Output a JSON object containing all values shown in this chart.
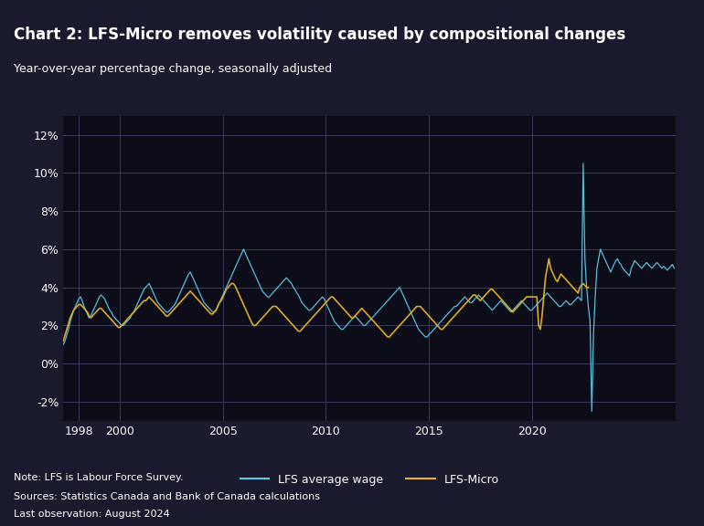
{
  "title": "Chart 2: LFS-Micro removes volatility caused by compositional changes",
  "subtitle": "Year-over-year percentage change, seasonally adjusted",
  "note_lines": [
    "Note: LFS is Labour Force Survey.",
    "Sources: Statistics Canada and Bank of Canada calculations",
    "Last observation: August 2024"
  ],
  "legend_labels": [
    "LFS average wage",
    "LFS-Micro"
  ],
  "lfs_color": "#5bc8e8",
  "micro_color": "#e8b422",
  "bg_color": "#1a1a2e",
  "plot_bg_color": "#0d0d1a",
  "text_color": "#ffffff",
  "grid_color": "#3a3a5a",
  "ylim": [
    -3,
    13
  ],
  "yticks": [
    -2,
    0,
    2,
    4,
    6,
    8,
    10,
    12
  ],
  "ytick_labels": [
    "-2%",
    "0%",
    "2%",
    "4%",
    "6%",
    "8%",
    "10%",
    "12%"
  ],
  "start_year": 1997.25,
  "lfs_avg": [
    1.0,
    1.2,
    1.5,
    1.8,
    2.2,
    2.5,
    2.8,
    3.0,
    3.2,
    3.4,
    3.5,
    3.3,
    3.0,
    2.8,
    2.6,
    2.4,
    2.5,
    2.7,
    2.9,
    3.1,
    3.3,
    3.5,
    3.6,
    3.5,
    3.4,
    3.2,
    3.0,
    2.8,
    2.7,
    2.5,
    2.4,
    2.3,
    2.2,
    2.1,
    2.0,
    2.0,
    2.1,
    2.2,
    2.3,
    2.4,
    2.6,
    2.7,
    2.9,
    3.1,
    3.3,
    3.5,
    3.7,
    3.9,
    4.0,
    4.1,
    4.2,
    4.0,
    3.8,
    3.6,
    3.4,
    3.2,
    3.1,
    3.0,
    2.9,
    2.8,
    2.7,
    2.7,
    2.8,
    2.9,
    3.0,
    3.1,
    3.3,
    3.5,
    3.7,
    3.9,
    4.1,
    4.3,
    4.5,
    4.7,
    4.8,
    4.6,
    4.4,
    4.2,
    4.0,
    3.8,
    3.6,
    3.4,
    3.2,
    3.1,
    3.0,
    2.9,
    2.8,
    2.7,
    2.7,
    2.8,
    3.0,
    3.2,
    3.4,
    3.6,
    3.8,
    4.0,
    4.2,
    4.4,
    4.6,
    4.8,
    5.0,
    5.2,
    5.4,
    5.6,
    5.8,
    6.0,
    5.8,
    5.6,
    5.4,
    5.2,
    5.0,
    4.8,
    4.6,
    4.4,
    4.2,
    4.0,
    3.8,
    3.7,
    3.6,
    3.5,
    3.5,
    3.6,
    3.7,
    3.8,
    3.9,
    4.0,
    4.1,
    4.2,
    4.3,
    4.4,
    4.5,
    4.4,
    4.3,
    4.2,
    4.0,
    3.9,
    3.7,
    3.6,
    3.4,
    3.2,
    3.1,
    3.0,
    2.9,
    2.8,
    2.8,
    2.9,
    3.0,
    3.1,
    3.2,
    3.3,
    3.4,
    3.5,
    3.4,
    3.2,
    3.0,
    2.8,
    2.6,
    2.4,
    2.2,
    2.1,
    2.0,
    1.9,
    1.8,
    1.8,
    1.9,
    2.0,
    2.1,
    2.2,
    2.3,
    2.4,
    2.5,
    2.4,
    2.3,
    2.2,
    2.1,
    2.0,
    2.0,
    2.1,
    2.2,
    2.3,
    2.4,
    2.5,
    2.6,
    2.7,
    2.8,
    2.9,
    3.0,
    3.1,
    3.2,
    3.3,
    3.4,
    3.5,
    3.6,
    3.7,
    3.8,
    3.9,
    4.0,
    3.8,
    3.6,
    3.4,
    3.2,
    3.0,
    2.8,
    2.6,
    2.4,
    2.2,
    2.0,
    1.8,
    1.7,
    1.6,
    1.5,
    1.4,
    1.4,
    1.5,
    1.6,
    1.7,
    1.8,
    1.9,
    2.0,
    2.1,
    2.2,
    2.3,
    2.4,
    2.5,
    2.6,
    2.7,
    2.8,
    2.9,
    3.0,
    3.0,
    3.1,
    3.2,
    3.3,
    3.4,
    3.5,
    3.4,
    3.3,
    3.2,
    3.2,
    3.3,
    3.4,
    3.5,
    3.6,
    3.5,
    3.4,
    3.3,
    3.2,
    3.1,
    3.0,
    2.9,
    2.8,
    2.9,
    3.0,
    3.1,
    3.2,
    3.3,
    3.2,
    3.1,
    3.0,
    2.9,
    2.8,
    2.7,
    2.8,
    2.9,
    3.0,
    3.1,
    3.2,
    3.3,
    3.2,
    3.1,
    3.0,
    2.9,
    2.8,
    2.8,
    2.9,
    3.0,
    3.1,
    3.2,
    3.3,
    3.4,
    3.5,
    3.6,
    3.7,
    3.6,
    3.5,
    3.4,
    3.3,
    3.2,
    3.1,
    3.0,
    3.0,
    3.1,
    3.2,
    3.3,
    3.2,
    3.1,
    3.1,
    3.2,
    3.3,
    3.4,
    3.5,
    3.4,
    3.3,
    10.5,
    5.5,
    4.0,
    3.0,
    2.2,
    -2.5,
    1.5,
    3.5,
    5.0,
    5.5,
    6.0,
    5.8,
    5.6,
    5.4,
    5.2,
    5.0,
    4.8,
    5.0,
    5.2,
    5.4,
    5.5,
    5.3,
    5.2,
    5.0,
    4.9,
    4.8,
    4.7,
    4.6,
    5.0,
    5.2,
    5.4,
    5.3,
    5.2,
    5.1,
    5.0,
    5.1,
    5.2,
    5.3,
    5.2,
    5.1,
    5.0,
    5.1,
    5.2,
    5.3,
    5.2,
    5.1,
    5.0,
    5.1,
    5.0,
    4.9,
    5.0,
    5.1,
    5.2,
    5.0
  ],
  "micro": [
    1.2,
    1.5,
    1.8,
    2.1,
    2.4,
    2.6,
    2.8,
    2.9,
    3.0,
    3.1,
    3.1,
    3.0,
    2.9,
    2.8,
    2.7,
    2.5,
    2.4,
    2.5,
    2.6,
    2.7,
    2.8,
    2.9,
    2.9,
    2.8,
    2.7,
    2.6,
    2.5,
    2.4,
    2.3,
    2.2,
    2.1,
    2.0,
    1.9,
    1.9,
    2.0,
    2.1,
    2.2,
    2.3,
    2.4,
    2.5,
    2.6,
    2.7,
    2.8,
    2.9,
    3.0,
    3.1,
    3.2,
    3.3,
    3.3,
    3.4,
    3.5,
    3.4,
    3.3,
    3.2,
    3.1,
    3.0,
    2.9,
    2.8,
    2.7,
    2.6,
    2.5,
    2.5,
    2.6,
    2.7,
    2.8,
    2.9,
    3.0,
    3.1,
    3.2,
    3.3,
    3.4,
    3.5,
    3.6,
    3.7,
    3.8,
    3.7,
    3.6,
    3.5,
    3.4,
    3.3,
    3.2,
    3.1,
    3.0,
    2.9,
    2.8,
    2.7,
    2.6,
    2.6,
    2.7,
    2.8,
    3.0,
    3.2,
    3.3,
    3.5,
    3.7,
    3.9,
    4.0,
    4.1,
    4.2,
    4.2,
    4.1,
    3.9,
    3.7,
    3.5,
    3.3,
    3.1,
    2.9,
    2.7,
    2.5,
    2.3,
    2.1,
    2.0,
    2.0,
    2.1,
    2.2,
    2.3,
    2.4,
    2.5,
    2.6,
    2.7,
    2.8,
    2.9,
    3.0,
    3.0,
    3.0,
    2.9,
    2.8,
    2.7,
    2.6,
    2.5,
    2.4,
    2.3,
    2.2,
    2.1,
    2.0,
    1.9,
    1.8,
    1.7,
    1.7,
    1.8,
    1.9,
    2.0,
    2.1,
    2.2,
    2.3,
    2.4,
    2.5,
    2.6,
    2.7,
    2.8,
    2.9,
    3.0,
    3.1,
    3.2,
    3.3,
    3.4,
    3.5,
    3.5,
    3.4,
    3.3,
    3.2,
    3.1,
    3.0,
    2.9,
    2.8,
    2.7,
    2.6,
    2.5,
    2.4,
    2.4,
    2.5,
    2.6,
    2.7,
    2.8,
    2.9,
    2.8,
    2.7,
    2.6,
    2.5,
    2.4,
    2.3,
    2.2,
    2.1,
    2.0,
    1.9,
    1.8,
    1.7,
    1.6,
    1.5,
    1.4,
    1.4,
    1.5,
    1.6,
    1.7,
    1.8,
    1.9,
    2.0,
    2.1,
    2.2,
    2.3,
    2.4,
    2.5,
    2.6,
    2.7,
    2.8,
    2.9,
    3.0,
    3.0,
    3.0,
    2.9,
    2.8,
    2.7,
    2.6,
    2.5,
    2.4,
    2.3,
    2.2,
    2.1,
    2.0,
    1.9,
    1.8,
    1.8,
    1.9,
    2.0,
    2.1,
    2.2,
    2.3,
    2.4,
    2.5,
    2.6,
    2.7,
    2.8,
    2.9,
    3.0,
    3.1,
    3.2,
    3.3,
    3.4,
    3.5,
    3.6,
    3.6,
    3.5,
    3.4,
    3.3,
    3.4,
    3.5,
    3.6,
    3.7,
    3.8,
    3.9,
    3.9,
    3.8,
    3.7,
    3.6,
    3.5,
    3.4,
    3.3,
    3.2,
    3.1,
    3.0,
    2.9,
    2.8,
    2.7,
    2.8,
    2.9,
    3.0,
    3.1,
    3.2,
    3.3,
    3.4,
    3.5,
    3.5,
    3.5,
    3.5,
    3.5,
    3.5,
    3.5,
    2.0,
    1.8,
    2.5,
    3.5,
    4.5,
    5.0,
    5.5,
    5.0,
    4.8,
    4.6,
    4.4,
    4.3,
    4.5,
    4.7,
    4.6,
    4.5,
    4.4,
    4.3,
    4.2,
    4.1,
    4.0,
    3.9,
    3.8,
    3.7,
    4.0,
    4.1,
    4.2,
    4.1,
    4.0,
    4.0
  ]
}
